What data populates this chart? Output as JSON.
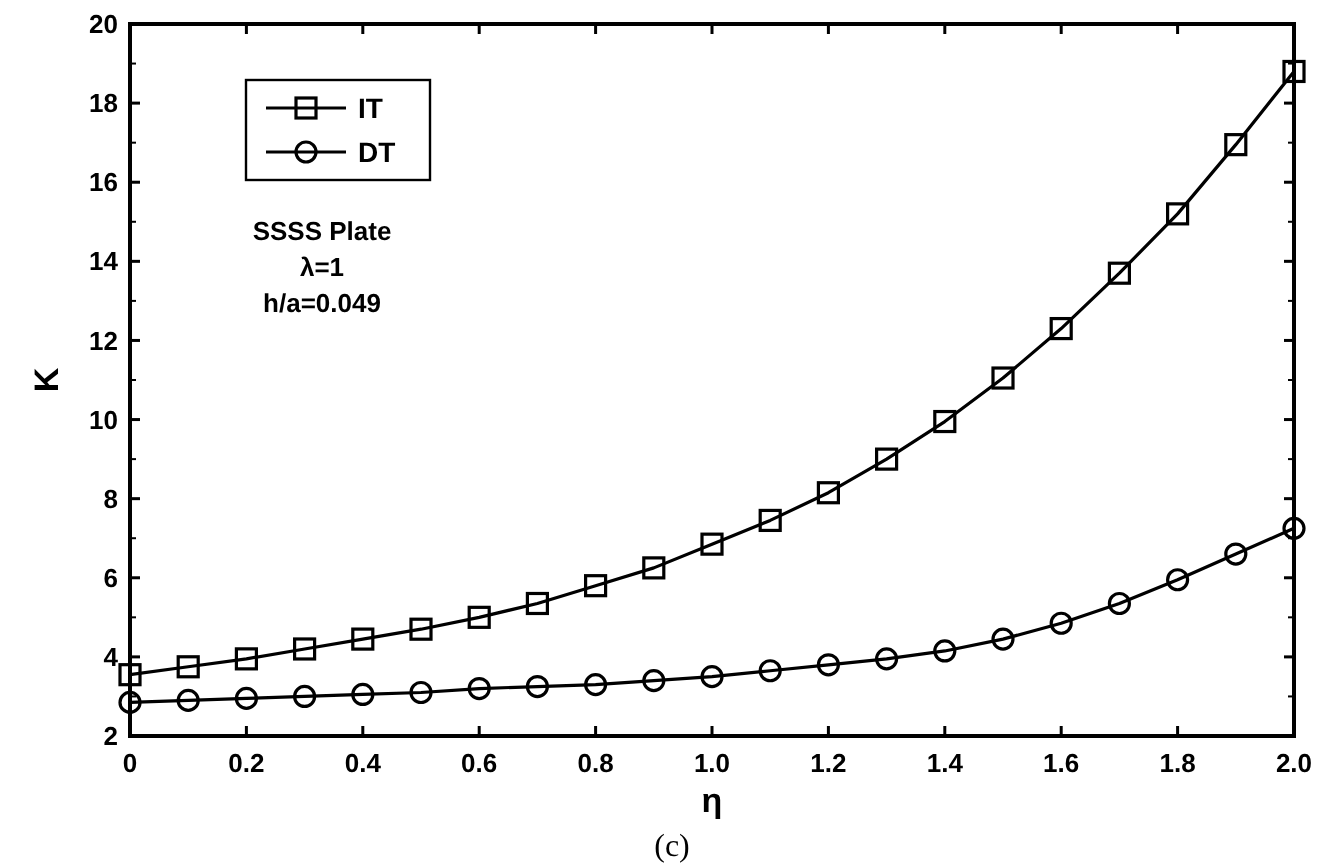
{
  "chart_data": {
    "type": "line",
    "xlabel": "η",
    "ylabel": "K",
    "x": [
      0,
      0.1,
      0.2,
      0.3,
      0.4,
      0.5,
      0.6,
      0.7,
      0.8,
      0.9,
      1.0,
      1.1,
      1.2,
      1.3,
      1.4,
      1.5,
      1.6,
      1.7,
      1.8,
      1.9,
      2.0
    ],
    "series": [
      {
        "name": "IT",
        "color": "#000000",
        "marker": "square",
        "values": [
          3.55,
          3.75,
          3.95,
          4.2,
          4.45,
          4.7,
          5.0,
          5.35,
          5.8,
          6.25,
          6.85,
          7.45,
          8.15,
          9.0,
          9.95,
          11.05,
          12.3,
          13.7,
          15.2,
          16.95,
          18.8
        ]
      },
      {
        "name": "DT",
        "color": "#000000",
        "marker": "circle",
        "values": [
          2.85,
          2.9,
          2.95,
          3.0,
          3.05,
          3.1,
          3.2,
          3.25,
          3.3,
          3.4,
          3.5,
          3.65,
          3.8,
          3.95,
          4.15,
          4.45,
          4.85,
          5.35,
          5.95,
          6.6,
          7.25
        ]
      }
    ],
    "xlim": [
      0,
      2
    ],
    "xticks": [
      0,
      0.2,
      0.4,
      0.6,
      0.8,
      {
        "value": 1,
        "label": "1.0"
      },
      1.2,
      1.4,
      1.6,
      1.8,
      {
        "value": 2,
        "label": "2.0"
      }
    ],
    "ylim": [
      2,
      20
    ],
    "yticks": [
      2,
      4,
      6,
      8,
      10,
      12,
      14,
      16,
      18,
      20
    ],
    "grid": false,
    "legend": "top left",
    "line_style": "solid",
    "annotations": [
      "SSSS Plate",
      "λ=1",
      "h/a=0.049",
      "(c)"
    ]
  }
}
